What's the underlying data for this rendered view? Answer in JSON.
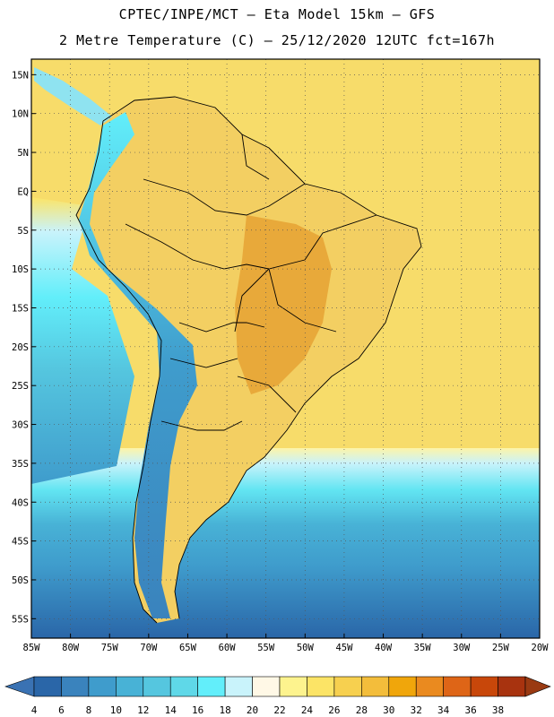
{
  "header": {
    "line1": "CPTEC/INPE/MCT –  Eta Model 15km – GFS",
    "line2": "2 Metre Temperature (C) – 25/12/2020 12UTC fct=167h"
  },
  "map": {
    "lat_ticks": [
      "15N",
      "10N",
      "5N",
      "EQ",
      "5S",
      "10S",
      "15S",
      "20S",
      "25S",
      "30S",
      "35S",
      "40S",
      "45S",
      "50S",
      "55S"
    ],
    "lon_ticks": [
      "85W",
      "80W",
      "75W",
      "70W",
      "65W",
      "60W",
      "55W",
      "50W",
      "45W",
      "40W",
      "35W",
      "30W",
      "25W",
      "20W"
    ],
    "extent": {
      "lon": [
        -85,
        -20
      ],
      "lat": [
        -57.5,
        17
      ]
    },
    "ocean_north_color": "#f7dc6a",
    "land_color": "#f3cf62",
    "hot_color": "#e8a93a"
  },
  "colorbar": {
    "labels": [
      "4",
      "6",
      "8",
      "10",
      "12",
      "14",
      "16",
      "18",
      "20",
      "22",
      "24",
      "26",
      "28",
      "30",
      "32",
      "34",
      "36",
      "38"
    ],
    "colors": [
      "#2a66a8",
      "#3a83bd",
      "#3f9ccc",
      "#48b2d6",
      "#55c6df",
      "#5fd8e8",
      "#62eefa",
      "#c9f3fb",
      "#fff8e6",
      "#fdf38e",
      "#fce466",
      "#f7d04f",
      "#f3bd3b",
      "#f0a60b",
      "#ea8a1f",
      "#de6517",
      "#c8470a",
      "#a8330f"
    ],
    "left_color": "#3a72b3",
    "right_color": "#9a3a12"
  }
}
